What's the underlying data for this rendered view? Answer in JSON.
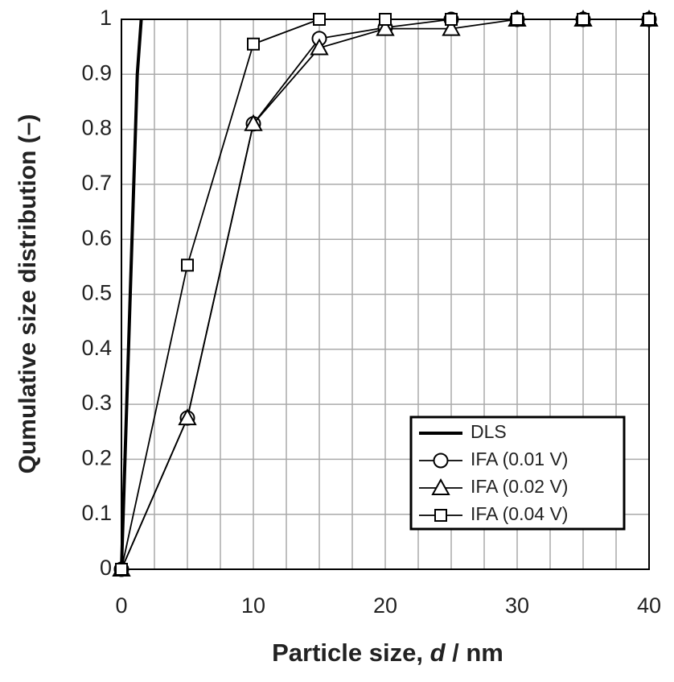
{
  "chart_data": {
    "type": "line",
    "ylabel": "Qumulative size distribution (–)",
    "xlabel": [
      "Particle size, ",
      "d",
      " / nm"
    ],
    "xlim": [
      0,
      40
    ],
    "ylim": [
      0,
      1
    ],
    "xticks": [
      0,
      10,
      20,
      30,
      40
    ],
    "xminor_grid": [
      2.5,
      5,
      7.5,
      12.5,
      15,
      17.5,
      22.5,
      25,
      27.5,
      32.5,
      35,
      37.5
    ],
    "yticks": [
      0,
      0.1,
      0.2,
      0.3,
      0.4,
      0.5,
      0.6,
      0.7,
      0.8,
      0.9,
      1
    ],
    "grid": true,
    "legend": "lower right",
    "series": [
      {
        "name": "DLS",
        "color": "#000000",
        "marker": "none",
        "x": [
          0,
          1.2,
          1.5
        ],
        "values": [
          0,
          0.9,
          1
        ]
      },
      {
        "name": "IFA (0.01 V)",
        "color": "#000000",
        "marker": "circle",
        "x": [
          0,
          5,
          10,
          15,
          20,
          25,
          30,
          35,
          40
        ],
        "values": [
          0,
          0.275,
          0.81,
          0.965,
          0.985,
          1,
          1,
          1,
          1
        ]
      },
      {
        "name": "IFA (0.02 V)",
        "color": "#000000",
        "marker": "triangle",
        "x": [
          0,
          5,
          10,
          15,
          20,
          25,
          30,
          35,
          40
        ],
        "values": [
          0,
          0.275,
          0.81,
          0.948,
          0.983,
          0.983,
          1,
          1,
          1
        ]
      },
      {
        "name": "IFA (0.04 V)",
        "color": "#000000",
        "marker": "square",
        "x": [
          0,
          5,
          10,
          15,
          20,
          25,
          30,
          35,
          40
        ],
        "values": [
          0,
          0.553,
          0.955,
          1,
          1,
          1,
          1,
          1,
          1
        ]
      }
    ]
  }
}
